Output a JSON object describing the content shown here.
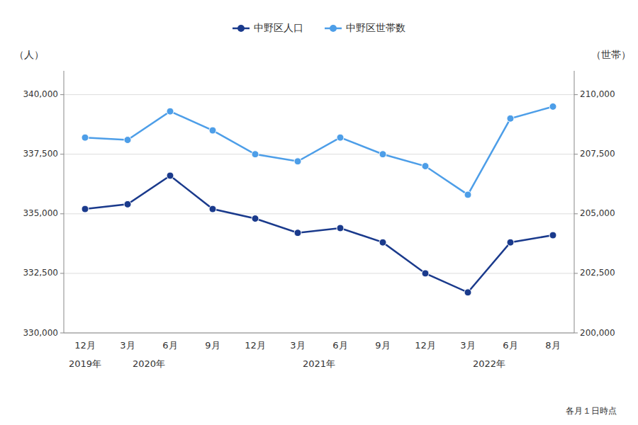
{
  "chart_data": {
    "type": "line",
    "ylabel": "（人）",
    "y2label": "（世帯）",
    "annotations": [
      "2019年",
      "2020年",
      "2021年",
      "2022年",
      "各月１日時点"
    ],
    "categories": [
      "12月",
      "3月",
      "6月",
      "9月",
      "12月",
      "3月",
      "6月",
      "9月",
      "12月",
      "3月",
      "6月",
      "8月"
    ],
    "series": [
      {
        "name": "中野区人口",
        "color": "#1a3a8c",
        "marker": "circle",
        "values": [
          335200,
          335400,
          336600,
          335200,
          334800,
          334200,
          334400,
          333800,
          332500,
          331700,
          333800,
          334100
        ]
      },
      {
        "name": "中野区世帯数",
        "color": "#4d9ee8",
        "marker": "circle",
        "axis": "y2",
        "values": [
          208200,
          208100,
          209300,
          208500,
          207500,
          207200,
          208200,
          207500,
          207000,
          205800,
          209000,
          209500
        ]
      }
    ],
    "ylim": [
      330000,
      341000
    ],
    "yticks": [
      {
        "value": 330000,
        "label": "330,000"
      },
      {
        "value": 332500,
        "label": "332,500"
      },
      {
        "value": 335000,
        "label": "335,000"
      },
      {
        "value": 337500,
        "label": "337,500"
      },
      {
        "value": 340000,
        "label": "340,000"
      }
    ],
    "y2lim": [
      200000,
      211000
    ],
    "y2ticks": [
      {
        "value": 200000,
        "label": "200,000"
      },
      {
        "value": 202500,
        "label": "202,500"
      },
      {
        "value": 205000,
        "label": "205,000"
      },
      {
        "value": 207500,
        "label": "207,500"
      },
      {
        "value": 210000,
        "label": "210,000"
      }
    ],
    "grid": true,
    "legend": "top"
  }
}
